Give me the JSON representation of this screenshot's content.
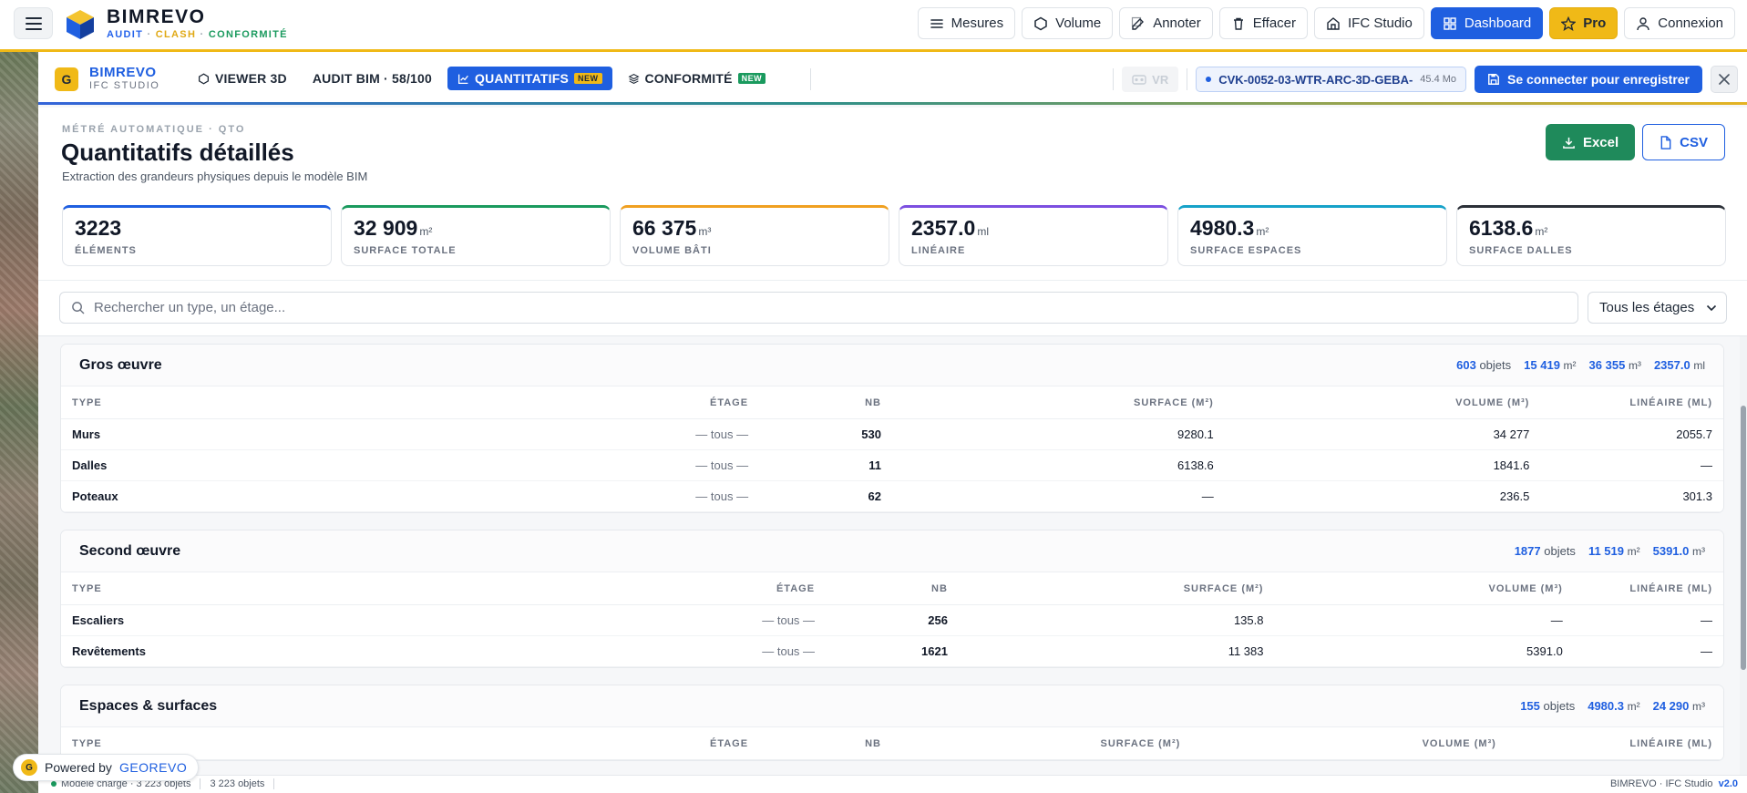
{
  "brand": {
    "name": "BIMREVO",
    "tag_audit": "AUDIT",
    "tag_clash": "CLASH",
    "tag_conf": "CONFORMITÉ",
    "sep": "·"
  },
  "nav": {
    "mesures": "Mesures",
    "volume": "Volume",
    "annoter": "Annoter",
    "effacer": "Effacer",
    "ifc_studio": "IFC Studio",
    "dashboard": "Dashboard",
    "pro": "Pro",
    "connexion": "Connexion"
  },
  "studio": {
    "badge": "G",
    "title": "BIMREVO",
    "subtitle": "IFC STUDIO",
    "tabs": [
      {
        "label": "VIEWER 3D"
      },
      {
        "label": "AUDIT BIM · 58/100"
      },
      {
        "label": "QUANTITATIFS",
        "tag": "NEW"
      },
      {
        "label": "CONFORMITÉ",
        "tag": "NEW"
      }
    ],
    "vr": "VR",
    "file_name": "CVK-0052-03-WTR-ARC-3D-GEBA-",
    "file_size": "45.4 Mo",
    "connect": "Se connecter pour enregistrer"
  },
  "page": {
    "eyebrow": "MÉTRÉ AUTOMATIQUE · QTO",
    "title": "Quantitatifs détaillés",
    "subtitle": "Extraction des grandeurs physiques depuis le modèle BIM",
    "excel": "Excel",
    "csv": "CSV"
  },
  "kpis": [
    {
      "value": "3223",
      "unit": "",
      "label": "ÉLÉMENTS",
      "color": "#1f5fe0"
    },
    {
      "value": "32 909",
      "unit": "m²",
      "label": "SURFACE TOTALE",
      "color": "#1a9a5e"
    },
    {
      "value": "66 375",
      "unit": "m³",
      "label": "VOLUME BÂTI",
      "color": "#f0a020"
    },
    {
      "value": "2357.0",
      "unit": "ml",
      "label": "LINÉAIRE",
      "color": "#7c4fe0"
    },
    {
      "value": "4980.3",
      "unit": "m²",
      "label": "SURFACE ESPACES",
      "color": "#16a2c9"
    },
    {
      "value": "6138.6",
      "unit": "m²",
      "label": "SURFACE DALLES",
      "color": "#2b3038"
    }
  ],
  "search": {
    "placeholder": "Rechercher un type, un étage..."
  },
  "floor_filter": {
    "value": "Tous les étages"
  },
  "columns": {
    "type": "TYPE",
    "etage": "ÉTAGE",
    "nb": "NB",
    "surface": "SURFACE (M²)",
    "volume": "VOLUME (M³)",
    "lineaire": "LINÉAIRE (ML)"
  },
  "groups": [
    {
      "title": "Gros œuvre",
      "stats": {
        "objets": "603",
        "objets_label": "objets",
        "surface": "15 419",
        "surface_unit": "m²",
        "volume": "36 355",
        "volume_unit": "m³",
        "lineaire": "2357.0",
        "lineaire_unit": "ml"
      },
      "rows": [
        {
          "type": "Murs",
          "etage": "— tous —",
          "nb": "530",
          "surface": "9280.1",
          "volume": "34 277",
          "lineaire": "2055.7"
        },
        {
          "type": "Dalles",
          "etage": "— tous —",
          "nb": "11",
          "surface": "6138.6",
          "volume": "1841.6",
          "lineaire": "—"
        },
        {
          "type": "Poteaux",
          "etage": "— tous —",
          "nb": "62",
          "surface": "—",
          "volume": "236.5",
          "lineaire": "301.3"
        }
      ]
    },
    {
      "title": "Second œuvre",
      "stats": {
        "objets": "1877",
        "objets_label": "objets",
        "surface": "11 519",
        "surface_unit": "m²",
        "volume": "5391.0",
        "volume_unit": "m³"
      },
      "rows": [
        {
          "type": "Escaliers",
          "etage": "— tous —",
          "nb": "256",
          "surface": "135.8",
          "volume": "—",
          "lineaire": "—"
        },
        {
          "type": "Revêtements",
          "etage": "— tous —",
          "nb": "1621",
          "surface": "11 383",
          "volume": "5391.0",
          "lineaire": "—"
        }
      ]
    },
    {
      "title": "Espaces & surfaces",
      "stats": {
        "objets": "155",
        "objets_label": "objets",
        "surface": "4980.3",
        "surface_unit": "m²",
        "volume": "24 290",
        "volume_unit": "m³"
      },
      "rows": []
    }
  ],
  "status": {
    "loaded": "Modèle chargé · 3 223 objets",
    "count": "3 223 objets",
    "app": "BIMREVO · IFC Studio",
    "version": "v2.0"
  },
  "powered": {
    "label": "Powered by",
    "brand": "GEOREVO",
    "badge": "G"
  }
}
